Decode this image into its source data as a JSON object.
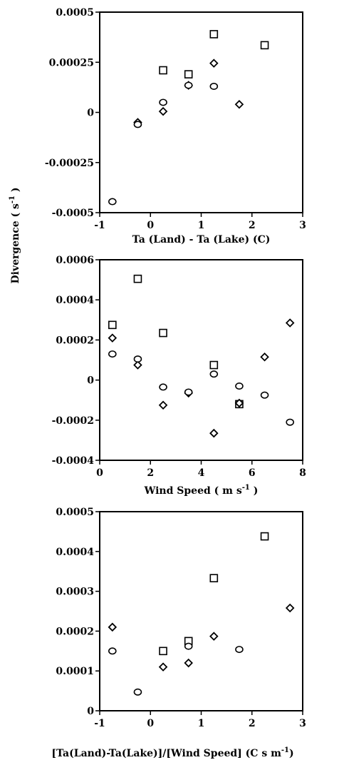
{
  "figure": {
    "shared_ylabel": "Divergence ( s",
    "shared_ylabel_sup": "-1",
    "shared_ylabel_end": " )"
  },
  "chart_data": [
    {
      "type": "scatter",
      "xlabel": "Ta (Land) - Ta (Lake) (C)",
      "xlim": [
        -1,
        3
      ],
      "ylim": [
        -0.0005,
        0.0005
      ],
      "xticks": [
        -1,
        0,
        1,
        2,
        3
      ],
      "xtick_labels": [
        "-1",
        "0",
        "1",
        "2",
        "3"
      ],
      "yticks": [
        -0.0005,
        -0.00025,
        0,
        0.00025,
        0.0005
      ],
      "ytick_labels": [
        "-0.0005",
        "-0.00025",
        "0",
        "0.00025",
        "0.0005"
      ],
      "series": [
        {
          "marker": "square",
          "points": [
            [
              0.25,
              0.00021
            ],
            [
              0.75,
              0.00019
            ],
            [
              1.25,
              0.00039
            ],
            [
              2.25,
              0.000335
            ]
          ]
        },
        {
          "marker": "diamond",
          "points": [
            [
              -0.25,
              -5e-05
            ],
            [
              0.25,
              5e-06
            ],
            [
              0.75,
              0.000135
            ],
            [
              1.25,
              0.000245
            ],
            [
              1.75,
              4e-05
            ]
          ]
        },
        {
          "marker": "circle",
          "points": [
            [
              -0.75,
              -0.000445
            ],
            [
              -0.25,
              -6e-05
            ],
            [
              0.25,
              5e-05
            ],
            [
              0.75,
              0.000135
            ],
            [
              1.25,
              0.00013
            ]
          ]
        }
      ]
    },
    {
      "type": "scatter",
      "xlabel": "Wind Speed ( m s",
      "xlabel_sup": "-1",
      "xlabel_end": " )",
      "xlim": [
        0,
        8
      ],
      "ylim": [
        -0.0004,
        0.0006
      ],
      "xticks": [
        0,
        2,
        4,
        6,
        8
      ],
      "xtick_labels": [
        "0",
        "2",
        "4",
        "6",
        "8"
      ],
      "yticks": [
        -0.0004,
        -0.0002,
        0,
        0.0002,
        0.0004,
        0.0006
      ],
      "ytick_labels": [
        "-0.0004",
        "-0.0002",
        "0",
        "0.0002",
        "0.0004",
        "0.0006"
      ],
      "series": [
        {
          "marker": "square",
          "points": [
            [
              0.5,
              0.000275
            ],
            [
              1.5,
              0.000505
            ],
            [
              2.5,
              0.000235
            ],
            [
              4.5,
              7.5e-05
            ],
            [
              5.5,
              -0.00012
            ]
          ]
        },
        {
          "marker": "diamond",
          "points": [
            [
              0.5,
              0.00021
            ],
            [
              1.5,
              7.5e-05
            ],
            [
              2.5,
              -0.000125
            ],
            [
              3.5,
              -6.5e-05
            ],
            [
              4.5,
              -0.000265
            ],
            [
              5.5,
              -0.000115
            ],
            [
              6.5,
              0.000115
            ],
            [
              7.5,
              0.000285
            ]
          ]
        },
        {
          "marker": "circle",
          "points": [
            [
              0.5,
              0.00013
            ],
            [
              1.5,
              0.000105
            ],
            [
              2.5,
              -3.5e-05
            ],
            [
              3.5,
              -6e-05
            ],
            [
              4.5,
              3e-05
            ],
            [
              5.5,
              -3e-05
            ],
            [
              6.5,
              -7.5e-05
            ],
            [
              7.5,
              -0.00021
            ]
          ]
        }
      ]
    },
    {
      "type": "scatter",
      "xlabel": "[Ta(Land)-Ta(Lake)]/[Wind Speed] (C s m",
      "xlabel_sup": "-1",
      "xlabel_end": ")",
      "xlim": [
        -1,
        3
      ],
      "ylim": [
        0,
        0.0005
      ],
      "xticks": [
        -1,
        0,
        1,
        2,
        3
      ],
      "xtick_labels": [
        "-1",
        "0",
        "1",
        "2",
        "3"
      ],
      "yticks": [
        0,
        0.0001,
        0.0002,
        0.0003,
        0.0004,
        0.0005
      ],
      "ytick_labels": [
        "0",
        "0.0001",
        "0.0002",
        "0.0003",
        "0.0004",
        "0.0005"
      ],
      "series": [
        {
          "marker": "square",
          "points": [
            [
              0.25,
              0.00015
            ],
            [
              0.75,
              0.000175
            ],
            [
              1.25,
              0.000333
            ],
            [
              2.25,
              0.000438
            ]
          ]
        },
        {
          "marker": "diamond",
          "points": [
            [
              -0.75,
              0.00021
            ],
            [
              0.25,
              0.00011
            ],
            [
              0.75,
              0.00012
            ],
            [
              1.25,
              0.000187
            ],
            [
              2.75,
              0.000258
            ]
          ]
        },
        {
          "marker": "circle",
          "points": [
            [
              -0.75,
              0.00015
            ],
            [
              -0.25,
              4.7e-05
            ],
            [
              0.75,
              0.000162
            ],
            [
              1.75,
              0.000154
            ]
          ]
        }
      ]
    }
  ]
}
